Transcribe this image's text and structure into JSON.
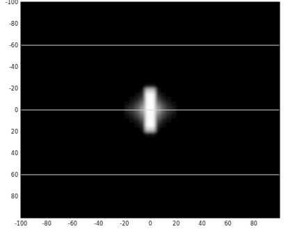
{
  "chart_data": {
    "type": "heatmap",
    "color": "#ffffff",
    "x": [
      -18,
      -14,
      -10,
      -6,
      -2,
      2,
      6,
      10,
      14,
      18
    ],
    "y": [
      -22,
      -18,
      -14,
      -10,
      -6,
      -2,
      2,
      6,
      10,
      14,
      18,
      22
    ],
    "values": [
      [
        0,
        0,
        0,
        0,
        0.1,
        0.1,
        0,
        0,
        0,
        0
      ],
      [
        0,
        0,
        0,
        0.05,
        0.8,
        0.8,
        0.05,
        0,
        0,
        0
      ],
      [
        0,
        0,
        0.05,
        0.15,
        1,
        1,
        0.15,
        0.05,
        0,
        0
      ],
      [
        0,
        0.05,
        0.12,
        0.3,
        1,
        1,
        0.3,
        0.12,
        0.05,
        0
      ],
      [
        0.05,
        0.12,
        0.25,
        0.45,
        1,
        1,
        0.45,
        0.25,
        0.12,
        0.05
      ],
      [
        0.1,
        0.2,
        0.35,
        0.6,
        1,
        1,
        0.6,
        0.35,
        0.2,
        0.1
      ],
      [
        0.1,
        0.2,
        0.35,
        0.6,
        1,
        1,
        0.6,
        0.35,
        0.2,
        0.1
      ],
      [
        0.05,
        0.12,
        0.25,
        0.45,
        1,
        1,
        0.45,
        0.25,
        0.12,
        0.05
      ],
      [
        0,
        0.05,
        0.12,
        0.3,
        1,
        1,
        0.3,
        0.12,
        0.05,
        0
      ],
      [
        0,
        0,
        0.05,
        0.15,
        1,
        1,
        0.15,
        0.05,
        0,
        0
      ],
      [
        0,
        0,
        0,
        0.05,
        0.8,
        0.8,
        0.05,
        0,
        0,
        0
      ],
      [
        0,
        0,
        0,
        0,
        0.1,
        0.1,
        0,
        0,
        0,
        0
      ]
    ],
    "xlim": [
      -100,
      100
    ],
    "ylim": [
      100,
      -100
    ],
    "xticks": [
      -100,
      -80,
      -60,
      -40,
      -20,
      0,
      20,
      40,
      60,
      80
    ],
    "yticks": [
      -100,
      -80,
      -60,
      -40,
      -20,
      0,
      20,
      40,
      60,
      80
    ],
    "hlines": [
      -60,
      0,
      60
    ]
  }
}
